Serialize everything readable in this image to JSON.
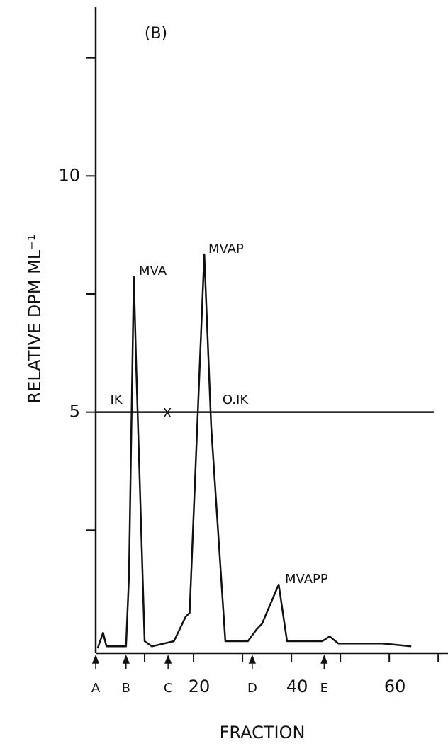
{
  "chart_data": {
    "type": "line",
    "title": "(B)",
    "y_label": "RELATIVE   DPM   ML⁻¹",
    "x_label": "FRACTION",
    "x": [
      0.4,
      1.5,
      2.2,
      6.2,
      6.8,
      7.8,
      8.3,
      10,
      11.5,
      16,
      18.4,
      19.2,
      22.2,
      23.6,
      26.5,
      31.1,
      32.9,
      34.0,
      37.4,
      39.1,
      46.3,
      47.8,
      49.6,
      58.6,
      64.5
    ],
    "values": [
      0,
      0.33,
      0.04,
      0.04,
      1.5,
      7.86,
      5.9,
      0.15,
      0.04,
      0.15,
      0.67,
      0.75,
      8.34,
      4.7,
      0.15,
      0.15,
      0.4,
      0.52,
      1.35,
      0.15,
      0.15,
      0.25,
      0.1,
      0.1,
      0.04
    ],
    "color": "#111111",
    "xlim": [
      0,
      72
    ],
    "ylim": [
      0,
      13.5
    ],
    "xticks": [
      10,
      20,
      30,
      40,
      50,
      60,
      70
    ],
    "xtick_labels": [
      {
        "value": 20,
        "label": "20"
      },
      {
        "value": 40,
        "label": "40"
      },
      {
        "value": 60,
        "label": "60"
      }
    ],
    "yticks": [
      2.5,
      5,
      7.5,
      10,
      12.5
    ],
    "ytick_labels": [
      {
        "value": 5,
        "label": "5"
      },
      {
        "value": 10,
        "label": "10"
      }
    ],
    "reference_line": 5,
    "markers": [
      {
        "label": "A",
        "x": 0
      },
      {
        "label": "B",
        "x": 6.2
      },
      {
        "label": "C",
        "x": 14.8
      },
      {
        "label": "D",
        "x": 32
      },
      {
        "label": "E",
        "x": 46.7
      }
    ],
    "annotations": [
      "MVA",
      "MVAP",
      "MVAPP",
      "IK",
      "X",
      "O.IK"
    ]
  }
}
